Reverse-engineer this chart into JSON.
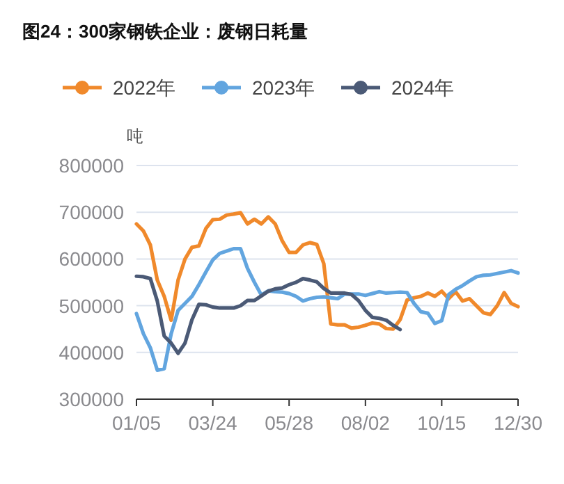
{
  "chart_data": {
    "type": "line",
    "title": "图24：300家钢铁企业：废钢日耗量",
    "ylabel": "吨",
    "categories": [
      "01/05",
      null,
      null,
      null,
      null,
      null,
      null,
      null,
      null,
      null,
      null,
      "03/24",
      null,
      null,
      null,
      null,
      null,
      null,
      null,
      null,
      null,
      null,
      "05/28",
      null,
      null,
      null,
      null,
      null,
      null,
      null,
      null,
      null,
      null,
      "08/02",
      null,
      null,
      null,
      null,
      null,
      null,
      null,
      null,
      null,
      null,
      "10/15",
      null,
      null,
      null,
      null,
      null,
      null,
      null,
      null,
      null,
      null,
      "12/30"
    ],
    "ylim": [
      300000,
      800000
    ],
    "yticks": [
      300000,
      400000,
      500000,
      600000,
      700000,
      800000
    ],
    "grid": "y",
    "legend": "top",
    "line_style": "solid",
    "series": [
      {
        "name": "2022年",
        "color": "#f0892b",
        "values": [
          675000,
          660000,
          630000,
          555000,
          520000,
          469000,
          555000,
          600000,
          625000,
          628000,
          665000,
          684000,
          685000,
          694000,
          696000,
          699000,
          675000,
          685000,
          675000,
          690000,
          675000,
          639000,
          614000,
          614000,
          630000,
          635000,
          631000,
          590000,
          461000,
          459000,
          459000,
          452000,
          454000,
          458000,
          463000,
          461000,
          451000,
          450000,
          470000,
          512000,
          517000,
          520000,
          527000,
          520000,
          531000,
          515000,
          530000,
          510000,
          515000,
          500000,
          485000,
          481000,
          500000,
          528000,
          505000,
          498000
        ]
      },
      {
        "name": "2023年",
        "color": "#62a5df",
        "values": [
          483000,
          440000,
          410000,
          362000,
          365000,
          440000,
          490000,
          505000,
          520000,
          545000,
          572000,
          598000,
          612000,
          617000,
          622000,
          622000,
          580000,
          550000,
          523000,
          532000,
          530000,
          529000,
          526000,
          520000,
          510000,
          515000,
          518000,
          519000,
          517000,
          515000,
          525000,
          525000,
          525000,
          522000,
          526000,
          530000,
          527000,
          528000,
          529000,
          528000,
          505000,
          487000,
          484000,
          462000,
          468000,
          524000,
          535000,
          543000,
          553000,
          562000,
          565000,
          566000,
          569000,
          572000,
          575000,
          570000
        ]
      },
      {
        "name": "2024年",
        "color": "#4b5a76",
        "values": [
          563000,
          562000,
          558000,
          510000,
          435000,
          420000,
          398000,
          420000,
          470000,
          503000,
          502000,
          497000,
          495000,
          495000,
          495000,
          500000,
          511000,
          511000,
          521000,
          531000,
          536000,
          538000,
          545000,
          550000,
          558000,
          555000,
          551000,
          537000,
          527000,
          527000,
          527000,
          524000,
          511000,
          490000,
          475000,
          473000,
          469000,
          458000,
          449000,
          null,
          null,
          null,
          null,
          null,
          null,
          null,
          null,
          null,
          null,
          null,
          null,
          null,
          null,
          null,
          null,
          null
        ]
      }
    ]
  }
}
